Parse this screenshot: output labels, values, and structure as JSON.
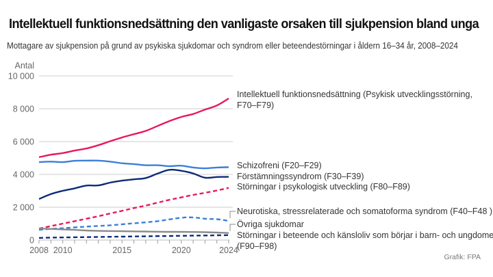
{
  "title": "Intellektuell funktionsnedsättning den vanligaste orsaken till sjukpension bland unga",
  "subtitle": "Mottagare av sjukpension på grund av psykiska sjukdomar och syndrom eller beteendestörningar i åldern 16–34 år, 2008–2024",
  "source": "Grafik: FPA",
  "chart_data": {
    "type": "line",
    "title": "Intellektuell funktionsnedsättning den vanligaste orsaken till sjukpension bland unga",
    "subtitle": "Mottagare av sjukpension på grund av psykiska sjukdomar och syndrom eller beteendestörningar i åldern 16–34 år, 2008–2024",
    "xlabel": "",
    "ylabel": "Antal",
    "ylim": [
      0,
      10000
    ],
    "xlim": [
      2008,
      2024
    ],
    "grid": true,
    "yticks": [
      0,
      2000,
      4000,
      6000,
      8000,
      10000
    ],
    "ytick_labels": [
      "0",
      "2 000",
      "4 000",
      "6 000",
      "8 000",
      "10 000"
    ],
    "xticks": [
      2008,
      2010,
      2015,
      2020,
      2024
    ],
    "xtick_labels": [
      "2008",
      "2010",
      "2015",
      "2020",
      "2024"
    ],
    "legend": "direct-labels-right",
    "x": [
      2008,
      2009,
      2010,
      2011,
      2012,
      2013,
      2014,
      2015,
      2016,
      2017,
      2018,
      2019,
      2020,
      2021,
      2022,
      2023,
      2024
    ],
    "series": [
      {
        "name": "Intellektuell funktionsnedsättning (Psykisk utvecklingsstörning, F70–F79)",
        "label_lines": [
          "Intellektuell funktionsnedsättning (Psykisk utvecklingsstörning,",
          "F70–F79)"
        ],
        "color": "#e8175d",
        "dash": false,
        "values": [
          5050,
          5200,
          5300,
          5450,
          5580,
          5780,
          6020,
          6250,
          6450,
          6650,
          6950,
          7250,
          7500,
          7680,
          7950,
          8200,
          8630
        ]
      },
      {
        "name": "Schizofreni (F20–F29)",
        "label_lines": [
          "Schizofreni (F20–F29)"
        ],
        "color": "#3b7fd9",
        "dash": false,
        "values": [
          4750,
          4780,
          4750,
          4830,
          4840,
          4840,
          4780,
          4680,
          4630,
          4560,
          4560,
          4500,
          4530,
          4420,
          4370,
          4420,
          4440
        ]
      },
      {
        "name": "Förstämningssyndrom (F30–F39)",
        "label_lines": [
          "Förstämningssyndrom (F30–F39)"
        ],
        "color": "#0b2b78",
        "dash": false,
        "values": [
          2500,
          2800,
          3000,
          3150,
          3320,
          3330,
          3500,
          3620,
          3700,
          3780,
          4050,
          4280,
          4220,
          4060,
          3800,
          3840,
          3850
        ]
      },
      {
        "name": "Störningar i psykologisk utveckling (F80–F89)",
        "label_lines": [
          "Störningar i psykologisk utveckling (F80–F89)"
        ],
        "color": "#e8175d",
        "dash": true,
        "values": [
          700,
          850,
          1000,
          1150,
          1300,
          1450,
          1620,
          1780,
          1950,
          2100,
          2280,
          2450,
          2600,
          2750,
          2880,
          3020,
          3180
        ]
      },
      {
        "name": "Neurotiska, stressrelaterade och somatoforma syndrom (F40–F48 )",
        "label_lines": [
          "Neurotiska, stressrelaterade och somatoforma syndrom (F40–F48 )"
        ],
        "color": "#3b7fd9",
        "dash": true,
        "values": [
          620,
          680,
          720,
          770,
          820,
          860,
          900,
          960,
          1020,
          1080,
          1150,
          1260,
          1360,
          1380,
          1300,
          1270,
          1170
        ]
      },
      {
        "name": "Övriga sjukdomar",
        "label_lines": [
          "Övriga sjukdomar"
        ],
        "color": "#8a8a8a",
        "dash": false,
        "values": [
          700,
          680,
          650,
          620,
          580,
          560,
          550,
          540,
          530,
          520,
          510,
          500,
          500,
          490,
          480,
          460,
          430
        ]
      },
      {
        "name": "Störningar i beteende och känsloliv som börjar i barn- och ungdomen (F90–F98)",
        "label_lines": [
          "Störningar i beteende och känsloliv som börjar i barn- och ungdomen",
          "(F90–F98)"
        ],
        "color": "#0b2b78",
        "dash": true,
        "values": [
          130,
          150,
          160,
          170,
          180,
          190,
          200,
          210,
          220,
          230,
          240,
          250,
          260,
          270,
          280,
          290,
          300
        ]
      }
    ]
  }
}
